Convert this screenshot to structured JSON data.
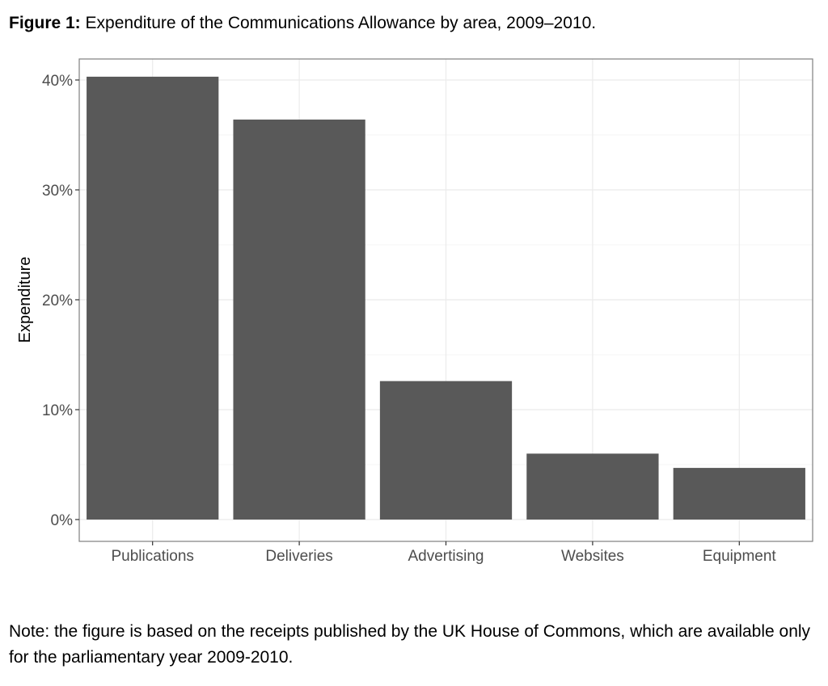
{
  "figure": {
    "label": "Figure 1:",
    "caption": "Expenditure of the Communications Allowance by area, 2009–2010.",
    "note": "Note: the figure is based on the receipts published by the UK House of Commons, which are available only for the parliamentary year 2009-2010."
  },
  "colors": {
    "bar": "#595959",
    "panel_background": "#ffffff",
    "panel_border": "#7f7f7f",
    "grid_major": "#ebebeb",
    "grid_minor": "#f5f5f5",
    "axis_text": "#4d4d4d"
  },
  "chart_data": {
    "type": "bar",
    "categories": [
      "Publications",
      "Deliveries",
      "Advertising",
      "Websites",
      "Equipment"
    ],
    "values": [
      40.3,
      36.4,
      12.6,
      6.0,
      4.7
    ],
    "title": "",
    "xlabel": "",
    "ylabel": "Expenditure",
    "ylim": [
      0,
      42
    ],
    "yticks": [
      0,
      10,
      20,
      30,
      40
    ],
    "ytick_labels": [
      "0%",
      "10%",
      "20%",
      "30%",
      "40%"
    ],
    "value_unit": "%",
    "grid": true,
    "legend": false
  }
}
